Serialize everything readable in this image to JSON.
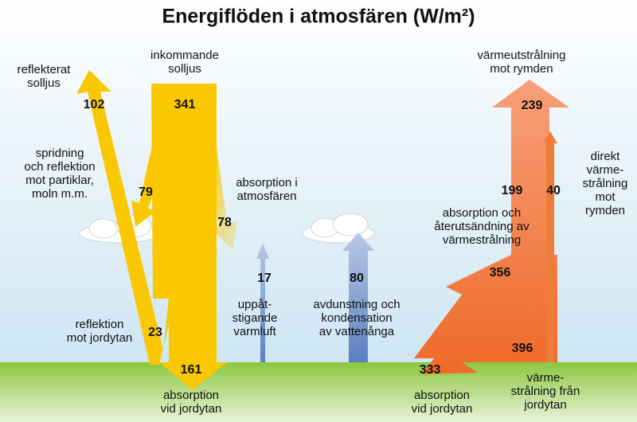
{
  "title": "Energiflöden i atmosfären (W/m²)",
  "flows": [
    {
      "label": [
        "reflekterat",
        "solljus"
      ],
      "value": 102
    },
    {
      "label": [
        "inkommande",
        "solljus"
      ],
      "value": 341
    },
    {
      "label": [
        "spridning",
        "och reflektion",
        "mot partiklar,",
        "moln m.m."
      ],
      "value": 79
    },
    {
      "label": [
        "absorption i",
        "atmosfären"
      ],
      "value": 78
    },
    {
      "label": [
        "reflektion",
        "mot jordytan"
      ],
      "value": 23
    },
    {
      "label": [
        "absorption",
        "vid jordytan"
      ],
      "value": 161
    },
    {
      "label": [
        "uppåt-",
        "stigande",
        "varmluft"
      ],
      "value": 17
    },
    {
      "label": [
        "avdunstning och",
        "kondensation",
        "av vattenånga"
      ],
      "value": 80
    },
    {
      "label": [
        "värmeutstrålning",
        "mot rymden"
      ],
      "value": 239
    },
    {
      "label": [
        "direkt",
        "värme-",
        "strålning",
        "mot",
        "rymden"
      ],
      "value": 40
    },
    {
      "value": 199
    },
    {
      "label": [
        "absorption och",
        "återutsändning av",
        "värmestrålning"
      ],
      "value": 356
    },
    {
      "label": [
        "absorption",
        "vid jordytan"
      ],
      "value": 333
    },
    {
      "label": [
        "värme-",
        "strålning från",
        "jordytan"
      ],
      "value": 396
    }
  ]
}
